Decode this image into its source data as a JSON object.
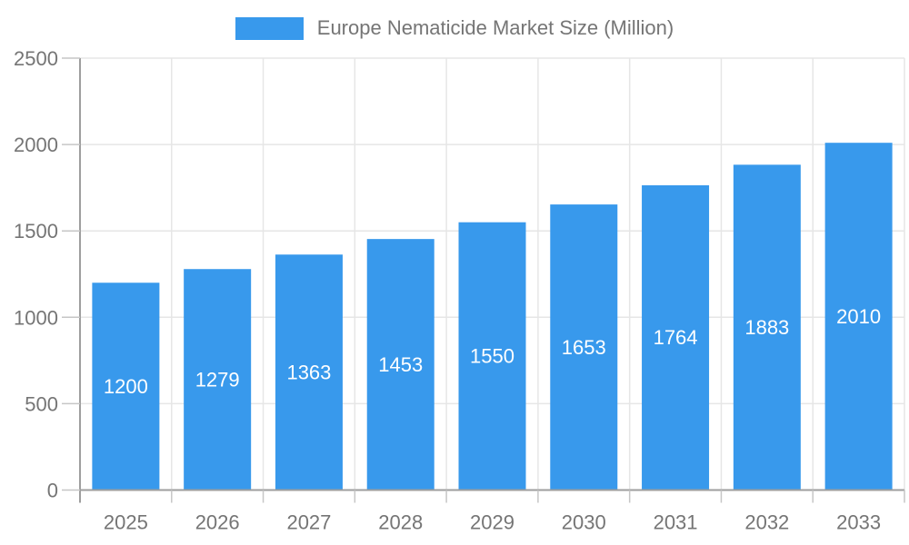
{
  "chart_data": {
    "type": "bar",
    "title": "Europe Nematicide Market Size (Million)",
    "categories": [
      "2025",
      "2026",
      "2027",
      "2028",
      "2029",
      "2030",
      "2031",
      "2032",
      "2033"
    ],
    "values": [
      1200,
      1279,
      1363,
      1453,
      1550,
      1653,
      1764,
      1883,
      2010
    ],
    "xlabel": "",
    "ylabel": "",
    "ylim": [
      0,
      2500
    ],
    "ytick_step": 500,
    "yticks": [
      0,
      500,
      1000,
      1500,
      2000,
      2500
    ],
    "grid": "on",
    "legend_position": "top",
    "colors": {
      "bar": "#3899EC",
      "value_label": "#ffffff",
      "axis_line": "#9e9e9e",
      "tick_mark": "#c6c6c6",
      "grid_line": "#e6e6e6",
      "text": "#757575"
    }
  }
}
